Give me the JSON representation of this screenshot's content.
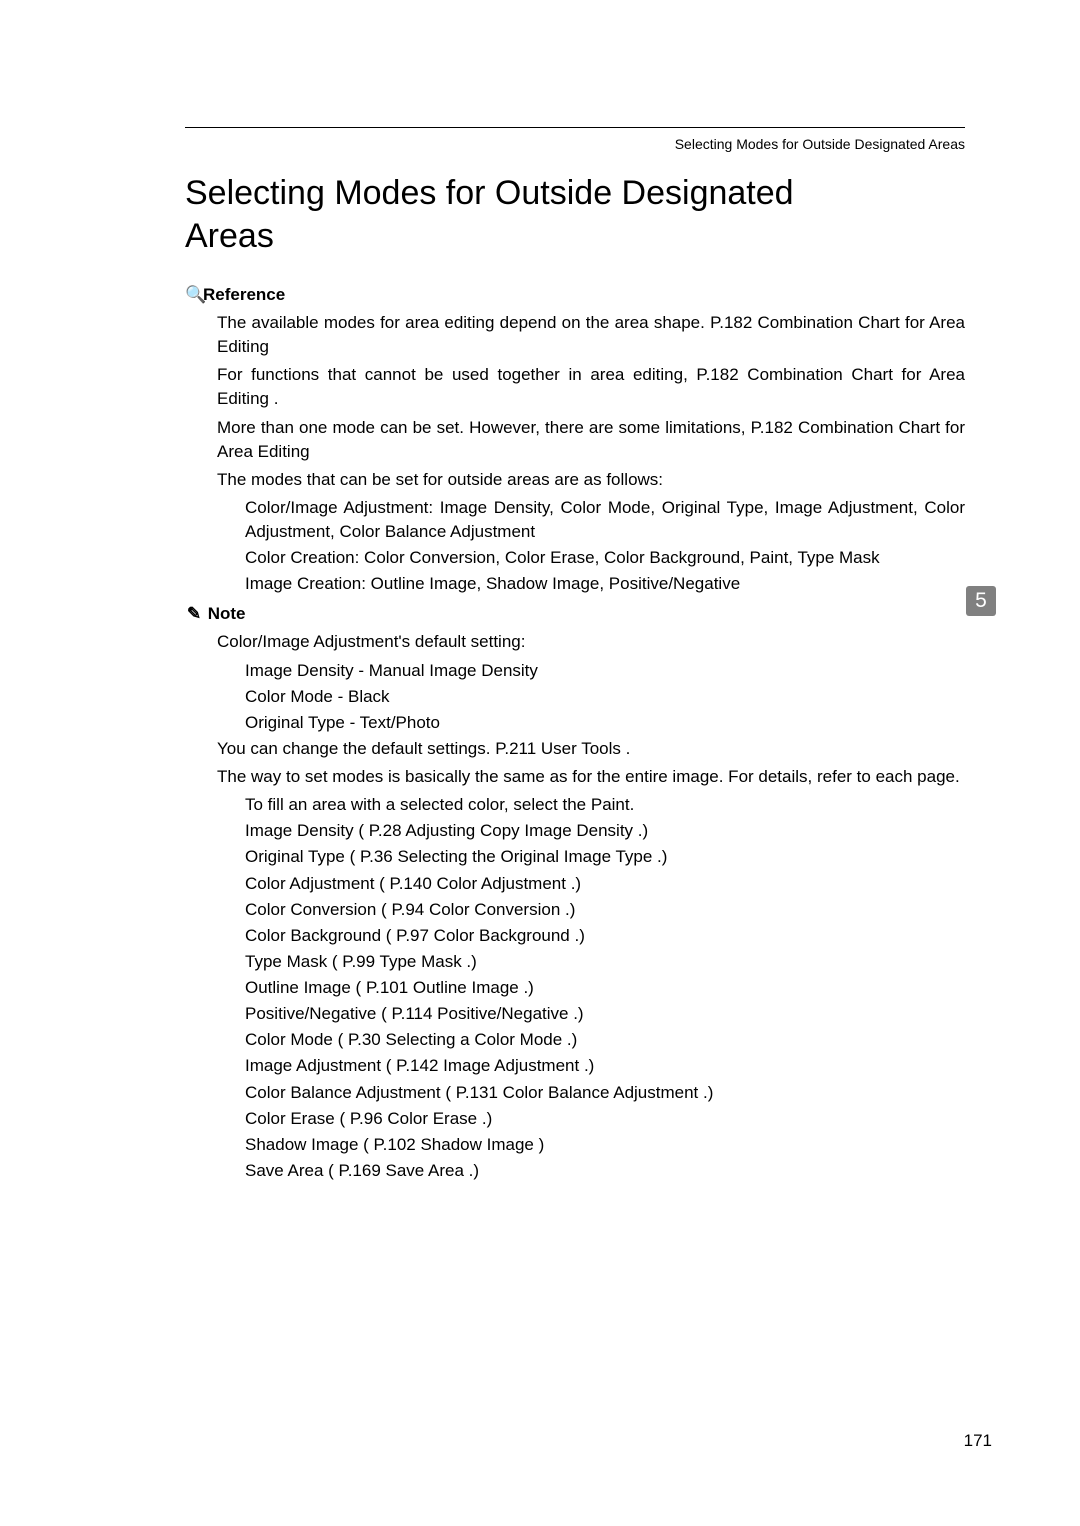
{
  "header": {
    "running_title": "Selecting Modes for Outside Designated Areas"
  },
  "title": "Selecting Modes for Outside Designated\nAreas",
  "reference": {
    "label": "Reference",
    "items": [
      "The available modes for area editing depend on the area shape.    P.182  Combination Chart for Area Editing",
      "For functions that cannot be used together in area editing,    P.182  Combination Chart for Area Editing .",
      "More than one mode can be set. However, there are some limitations,    P.182  Combination Chart for Area Editing",
      "The modes that can be set for outside areas are as follows:"
    ],
    "sublist": [
      "Color/Image Adjustment: Image Density, Color Mode, Original Type, Image Adjustment, Color Adjustment, Color Balance Adjustment",
      "Color Creation: Color Conversion, Color Erase, Color Background, Paint, Type Mask",
      "Image Creation: Outline Image, Shadow Image, Positive/Negative"
    ]
  },
  "note": {
    "label": "Note",
    "lead": "Color/Image Adjustment's default setting:",
    "defaults": [
      "Image Density - Manual Image Density",
      "Color Mode - Black",
      "Original Type - Text/Photo"
    ],
    "change": "You can change the default settings.    P.211  User Tools .",
    "way": "The way to set modes is basically the same as for the entire image. For details, refer to each page.",
    "items": [
      "To fill an area with a selected color, select the Paint.",
      "Image Density (    P.28  Adjusting Copy Image Density .)",
      "Original Type (    P.36  Selecting the Original Image Type .)",
      "Color Adjustment (    P.140  Color Adjustment .)",
      "Color Conversion (    P.94  Color Conversion .)",
      "Color Background (    P.97  Color Background .)",
      "Type Mask (    P.99  Type Mask .)",
      "Outline Image (    P.101  Outline Image .)",
      "Positive/Negative (    P.114  Positive/Negative .)",
      "Color Mode (    P.30  Selecting a Color Mode .)",
      "Image Adjustment (    P.142  Image Adjustment .)",
      "Color Balance Adjustment (    P.131  Color Balance Adjustment .)",
      "Color Erase (    P.96  Color Erase .)",
      "Shadow Image (    P.102  Shadow Image )",
      "Save Area (    P.169  Save Area .)"
    ]
  },
  "sidebar": {
    "tab_number": "5"
  },
  "footer": {
    "page_number": "171"
  },
  "icons": {
    "reference": "🔍",
    "note": "✎"
  },
  "colors": {
    "text": "#000000",
    "background": "#ffffff",
    "tab_bg": "#808080",
    "tab_fg": "#ffffff"
  }
}
